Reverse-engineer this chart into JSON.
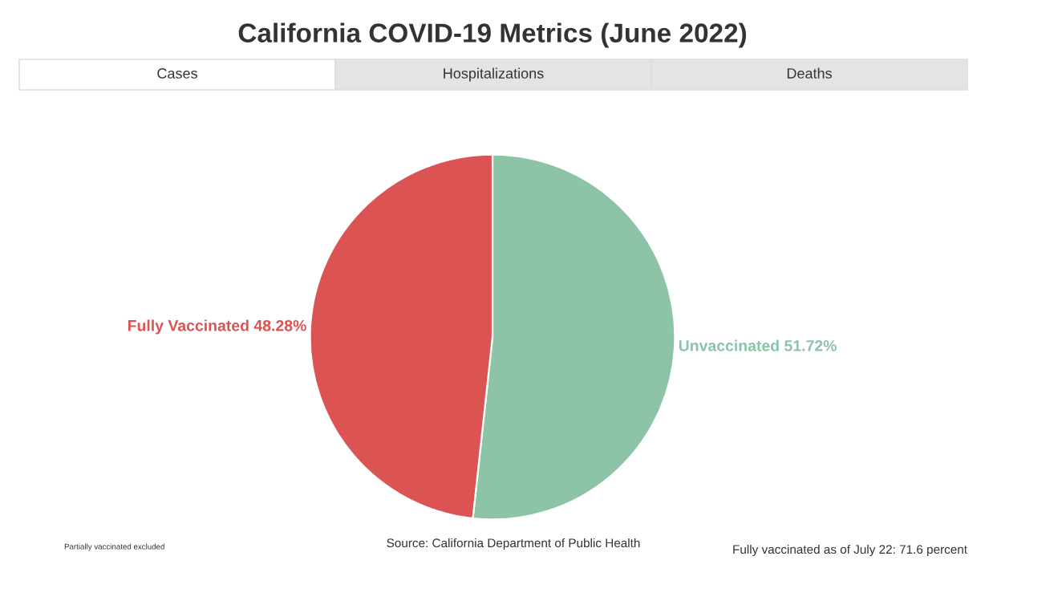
{
  "chart_data": {
    "type": "pie",
    "title": "California COVID-19 Metrics (June 2022)",
    "categories": [
      "Unvaccinated",
      "Fully Vaccinated"
    ],
    "values": [
      51.72,
      48.28
    ],
    "value_labels": [
      "51.72%",
      "48.28%"
    ],
    "colors": [
      "#8dc3a7",
      "#dc5354"
    ],
    "legend": false,
    "annotations": [
      "Cases",
      "Hospitalizations",
      "Deaths",
      "Partially vaccinated excluded",
      "Source: California Department of Public Health",
      "Fully vaccinated as of July 22: 71.6 percent"
    ]
  }
}
